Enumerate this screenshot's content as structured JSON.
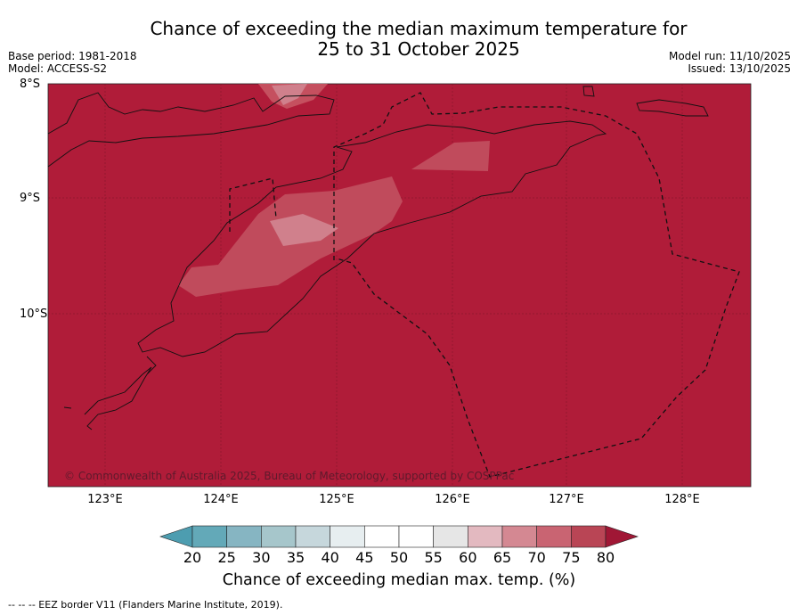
{
  "header": {
    "title_line1": "Chance of exceeding the median maximum temperature for",
    "title_line2": "25 to 31 October 2025",
    "base_period": "Base period: 1981-2018",
    "model": "Model: ACCESS-S2",
    "model_run": "Model run: 11/10/2025",
    "issued": "Issued: 13/10/2025"
  },
  "map": {
    "lat_labels": [
      "8°S",
      "9°S",
      "10°S"
    ],
    "lon_labels": [
      "123°E",
      "124°E",
      "125°E",
      "126°E",
      "127°E",
      "128°E"
    ],
    "copyright": "© Commonwealth of Australia 2025, Bureau of Meteorology, supported by COSPPac",
    "background_color": "#b01c39"
  },
  "colorbar": {
    "tick_labels": [
      "20",
      "25",
      "30",
      "35",
      "40",
      "45",
      "50",
      "55",
      "60",
      "65",
      "70",
      "75",
      "80"
    ],
    "colors": [
      "#4d9db0",
      "#63a9b8",
      "#86b5c2",
      "#a6c6cb",
      "#c6d7dc",
      "#e7eef0",
      "#ffffff",
      "#ffffff",
      "#e6e6e6",
      "#e3b9c0",
      "#d48892",
      "#c96472",
      "#b94555",
      "#a01735"
    ],
    "title": "Chance of exceeding median max. temp. (%)"
  },
  "footnote": "-- -- -- EEZ border V11 (Flanders Marine Institute, 2019)."
}
